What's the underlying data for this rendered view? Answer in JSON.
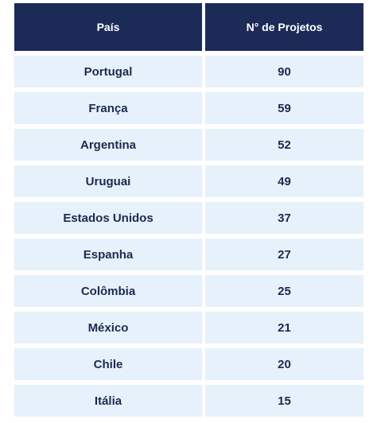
{
  "table": {
    "headers": {
      "country": "País",
      "projects": "N° de Projetos"
    },
    "rows": [
      {
        "country": "Portugal",
        "projects": "90"
      },
      {
        "country": "França",
        "projects": "59"
      },
      {
        "country": "Argentina",
        "projects": "52"
      },
      {
        "country": "Uruguai",
        "projects": "49"
      },
      {
        "country": "Estados Unidos",
        "projects": "37"
      },
      {
        "country": "Espanha",
        "projects": "27"
      },
      {
        "country": "Colômbia",
        "projects": "25"
      },
      {
        "country": "México",
        "projects": "21"
      },
      {
        "country": "Chile",
        "projects": "20"
      },
      {
        "country": "Itália",
        "projects": "15"
      }
    ],
    "colors": {
      "header_bg": "#1b2a57",
      "cell_bg": "#e6f1fb",
      "text": "#1c2a4f"
    }
  }
}
